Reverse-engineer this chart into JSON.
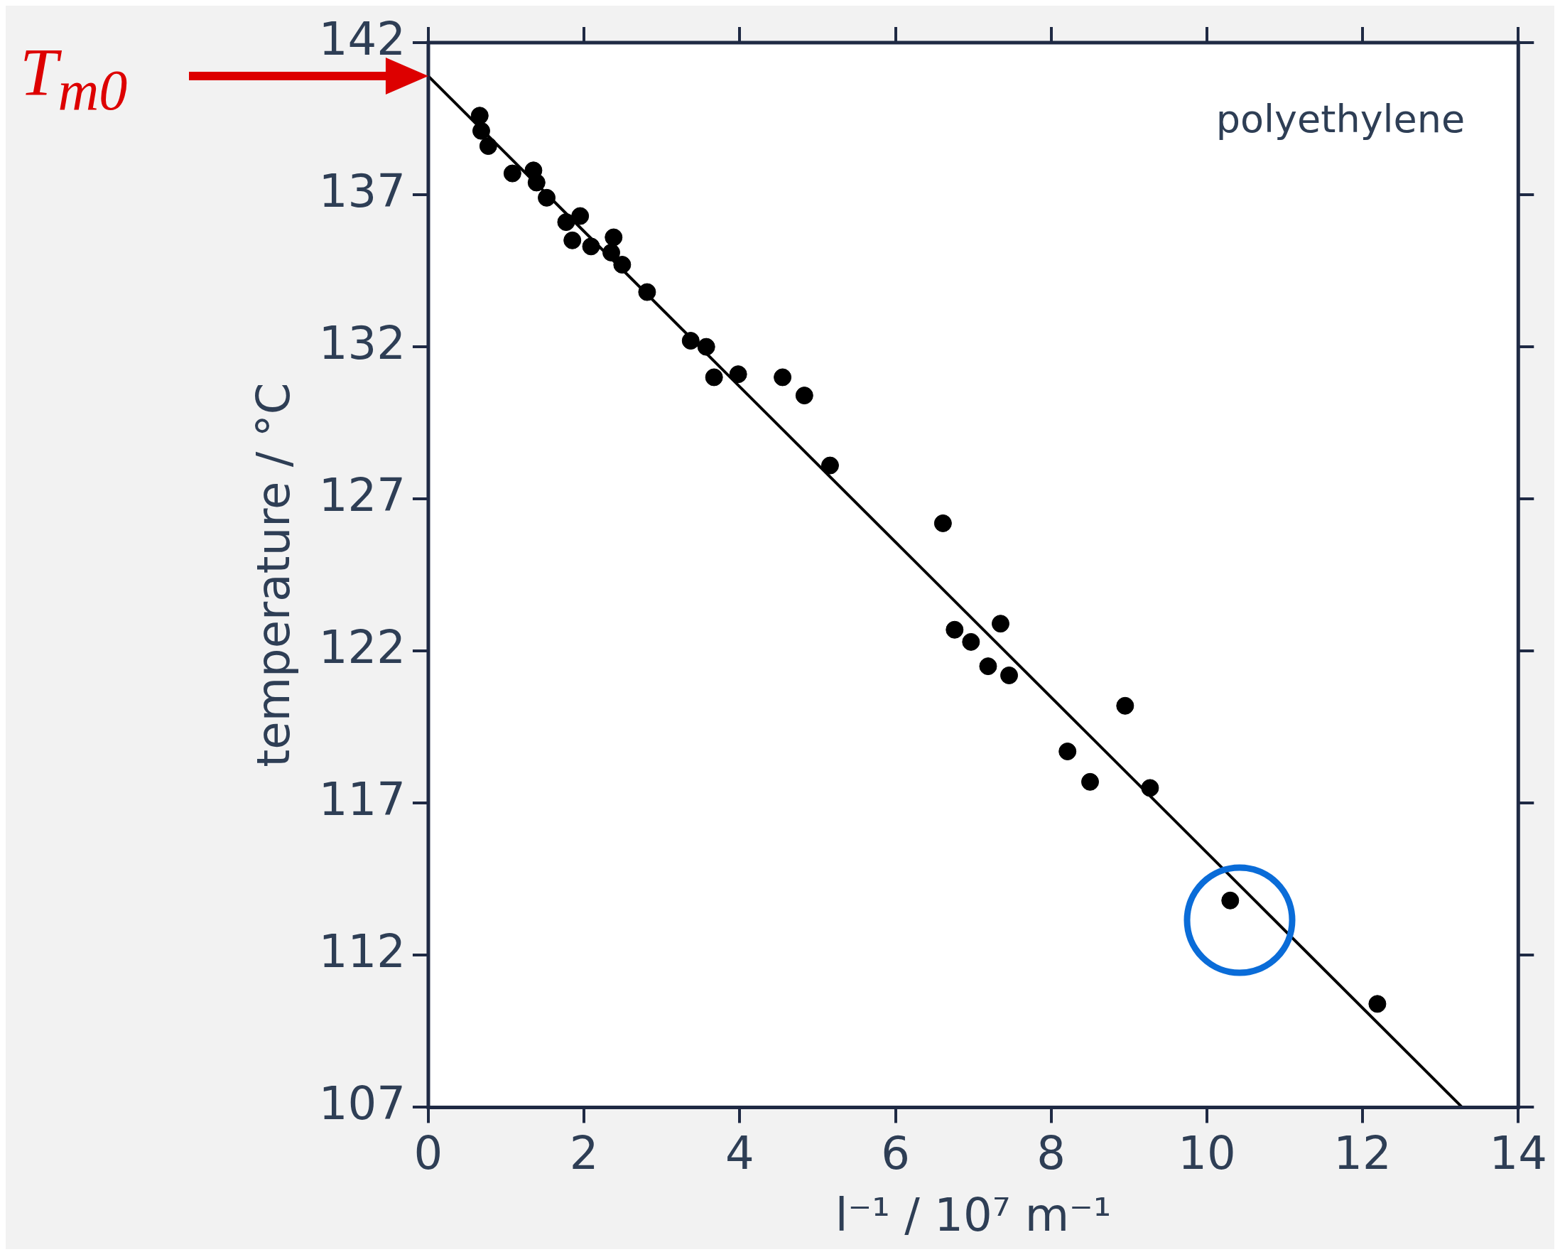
{
  "chart_data": {
    "type": "scatter",
    "xlabel": "l⁻¹ / 10⁷ m⁻¹",
    "ylabel": "temperature / °C",
    "xlim": [
      0,
      14
    ],
    "xticks": [
      0,
      2,
      4,
      6,
      8,
      10,
      12,
      14
    ],
    "ylim": [
      107,
      142
    ],
    "yticks": [
      107,
      112,
      117,
      122,
      127,
      132,
      137,
      142
    ],
    "grid": false,
    "legend": false,
    "annotations": [
      "T$_{m0}$",
      "polyethylene"
    ],
    "series": [
      {
        "color": "#000000",
        "marker": "circle",
        "x": [
          0.66,
          0.68,
          0.77,
          1.08,
          1.35,
          1.39,
          1.52,
          1.77,
          1.95,
          1.85,
          2.09,
          2.35,
          2.38,
          2.49,
          2.81,
          3.37,
          3.57,
          3.67,
          3.98,
          4.55,
          4.83,
          5.16,
          6.61,
          6.76,
          6.97,
          7.35,
          7.19,
          7.46,
          8.95,
          8.21,
          8.5,
          9.27,
          10.3,
          12.19
        ],
        "values": [
          139.6,
          139.1,
          138.6,
          137.7,
          137.8,
          137.4,
          136.9,
          136.1,
          136.3,
          135.5,
          135.3,
          135.1,
          135.6,
          134.7,
          133.8,
          132.2,
          132.0,
          131.0,
          131.1,
          131.0,
          130.4,
          128.1,
          126.2,
          122.7,
          122.3,
          122.9,
          121.5,
          121.2,
          120.2,
          118.7,
          117.7,
          117.5,
          113.8,
          110.4
        ]
      },
      {
        "type": "line",
        "color": "#000000",
        "x": [
          0,
          13.28
        ],
        "values": [
          140.9,
          107
        ]
      }
    ]
  }
}
